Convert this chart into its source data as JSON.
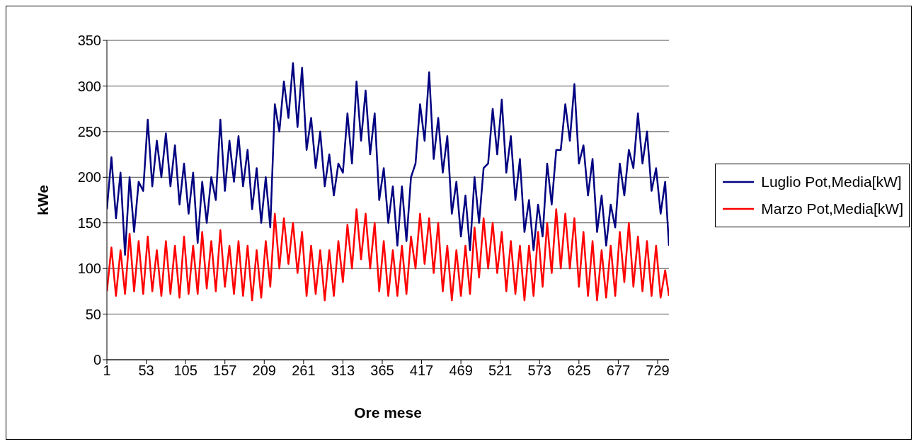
{
  "chart_data": {
    "type": "line",
    "xlabel": "Ore mese",
    "ylabel": "kWe",
    "x": [
      1,
      7,
      13,
      19,
      25,
      31,
      37,
      43,
      49,
      55,
      61,
      67,
      73,
      79,
      85,
      91,
      97,
      103,
      109,
      115,
      121,
      127,
      133,
      139,
      145,
      151,
      157,
      163,
      169,
      175,
      181,
      187,
      193,
      199,
      205,
      211,
      217,
      223,
      229,
      235,
      241,
      247,
      253,
      259,
      265,
      271,
      277,
      283,
      289,
      295,
      301,
      307,
      313,
      319,
      325,
      331,
      337,
      343,
      349,
      355,
      361,
      367,
      373,
      379,
      385,
      391,
      397,
      403,
      409,
      415,
      421,
      427,
      433,
      439,
      445,
      451,
      457,
      463,
      469,
      475,
      481,
      487,
      493,
      499,
      505,
      511,
      517,
      523,
      529,
      535,
      541,
      547,
      553,
      559,
      565,
      571,
      577,
      583,
      589,
      595,
      601,
      607,
      613,
      619,
      625,
      631,
      637,
      643,
      649,
      655,
      661,
      667,
      673,
      679,
      685,
      691,
      697,
      703,
      709,
      715,
      721,
      727,
      733,
      739,
      744
    ],
    "series": [
      {
        "name": "Luglio Pot,Media[kW]",
        "color": "#000080",
        "values": [
          165,
          222,
          155,
          205,
          115,
          200,
          140,
          195,
          185,
          263,
          190,
          240,
          200,
          248,
          190,
          235,
          170,
          215,
          160,
          205,
          128,
          195,
          150,
          200,
          175,
          263,
          185,
          240,
          195,
          245,
          190,
          230,
          165,
          210,
          150,
          200,
          145,
          280,
          250,
          305,
          265,
          325,
          255,
          320,
          230,
          265,
          210,
          250,
          190,
          225,
          180,
          215,
          205,
          270,
          215,
          305,
          240,
          295,
          225,
          270,
          175,
          210,
          150,
          190,
          125,
          190,
          130,
          200,
          215,
          280,
          240,
          315,
          220,
          265,
          205,
          245,
          160,
          195,
          135,
          180,
          120,
          200,
          150,
          210,
          215,
          275,
          225,
          285,
          205,
          245,
          175,
          220,
          140,
          175,
          120,
          170,
          135,
          215,
          170,
          230,
          230,
          280,
          240,
          302,
          215,
          235,
          180,
          220,
          140,
          180,
          125,
          170,
          145,
          215,
          180,
          230,
          210,
          270,
          215,
          250,
          185,
          210,
          160,
          195,
          125
        ]
      },
      {
        "name": "Marzo Pot,Media[kW]",
        "color": "#ff0000",
        "values": [
          75,
          123,
          70,
          120,
          72,
          138,
          75,
          130,
          72,
          135,
          75,
          120,
          70,
          130,
          72,
          125,
          68,
          135,
          72,
          125,
          72,
          140,
          78,
          130,
          75,
          142,
          80,
          125,
          72,
          130,
          70,
          125,
          65,
          120,
          68,
          130,
          80,
          160,
          100,
          155,
          105,
          150,
          95,
          140,
          70,
          125,
          72,
          120,
          65,
          120,
          70,
          130,
          85,
          148,
          100,
          165,
          110,
          160,
          100,
          150,
          75,
          130,
          70,
          120,
          70,
          125,
          72,
          135,
          100,
          160,
          105,
          155,
          95,
          150,
          75,
          125,
          65,
          120,
          70,
          125,
          72,
          145,
          90,
          155,
          100,
          150,
          95,
          140,
          75,
          130,
          72,
          125,
          65,
          125,
          70,
          140,
          80,
          150,
          95,
          165,
          100,
          160,
          100,
          155,
          80,
          140,
          70,
          130,
          65,
          120,
          68,
          125,
          70,
          140,
          85,
          150,
          80,
          135,
          75,
          130,
          70,
          125,
          68,
          98,
          70
        ]
      }
    ],
    "xlim": [
      1,
      744
    ],
    "xticks": [
      1,
      53,
      105,
      157,
      209,
      261,
      313,
      365,
      417,
      469,
      521,
      573,
      625,
      677,
      729
    ],
    "ylim": [
      0,
      350
    ],
    "yticks": [
      0,
      50,
      100,
      150,
      200,
      250,
      300,
      350
    ],
    "grid": "y",
    "legend": "right",
    "marker": "none",
    "line_style": "solid"
  }
}
